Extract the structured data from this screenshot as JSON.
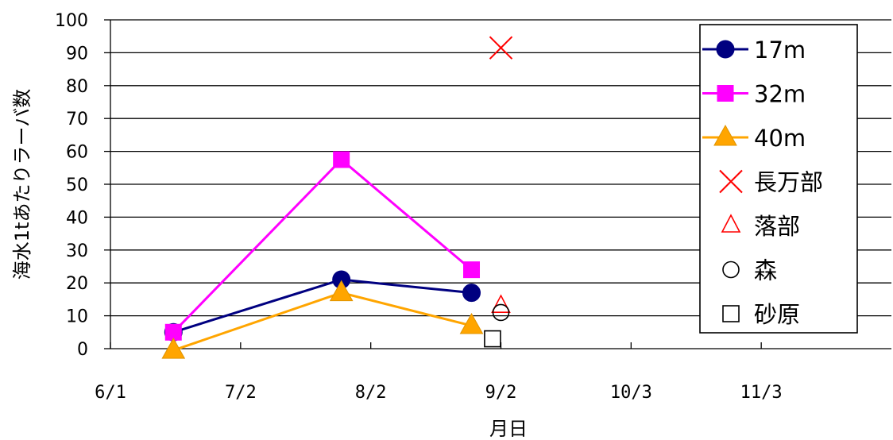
{
  "chart_data": {
    "type": "line",
    "xlabel": "月日",
    "ylabel": "海水1tあたりラーバ数",
    "ylim": [
      0,
      100
    ],
    "yticks": [
      0,
      10,
      20,
      30,
      40,
      50,
      60,
      70,
      80,
      90,
      100
    ],
    "xlim": [
      "6/1",
      "12/4"
    ],
    "xticks": [
      {
        "date": "6/1",
        "label": "6/1"
      },
      {
        "date": "7/2",
        "label": "7/2"
      },
      {
        "date": "8/2",
        "label": "8/2"
      },
      {
        "date": "9/2",
        "label": "9/2"
      },
      {
        "date": "10/3",
        "label": "10/3"
      },
      {
        "date": "11/3",
        "label": "11/3"
      }
    ],
    "grid": "horizontal",
    "legend_position": "top-right",
    "series": [
      {
        "name": "17m",
        "kind": "line",
        "marker": "circle",
        "color": "#000080",
        "points": [
          {
            "x": "6/16",
            "y": 5
          },
          {
            "x": "7/26",
            "y": 21
          },
          {
            "x": "8/26",
            "y": 17
          }
        ]
      },
      {
        "name": "32m",
        "kind": "line",
        "marker": "square",
        "color": "#ff00ff",
        "points": [
          {
            "x": "6/16",
            "y": 5
          },
          {
            "x": "7/26",
            "y": 57.5
          },
          {
            "x": "8/26",
            "y": 24
          }
        ]
      },
      {
        "name": "40m",
        "kind": "line",
        "marker": "triangle",
        "color": "#ffa500",
        "points": [
          {
            "x": "6/16",
            "y": -0.5
          },
          {
            "x": "7/26",
            "y": 17
          },
          {
            "x": "8/26",
            "y": 7
          }
        ]
      },
      {
        "name": "長万部",
        "kind": "point",
        "marker": "x",
        "color": "#ff0000",
        "points": [
          {
            "x": "9/2",
            "y": 91.5
          }
        ]
      },
      {
        "name": "落部",
        "kind": "point",
        "marker": "triangle-open",
        "color": "#ff0000",
        "points": [
          {
            "x": "9/2",
            "y": 13
          }
        ]
      },
      {
        "name": "森",
        "kind": "point",
        "marker": "circle-open",
        "color": "#000000",
        "points": [
          {
            "x": "9/2",
            "y": 11
          }
        ]
      },
      {
        "name": "砂原",
        "kind": "point",
        "marker": "square-open",
        "color": "#000000",
        "points": [
          {
            "x": "8/31",
            "y": 3
          }
        ]
      }
    ]
  }
}
